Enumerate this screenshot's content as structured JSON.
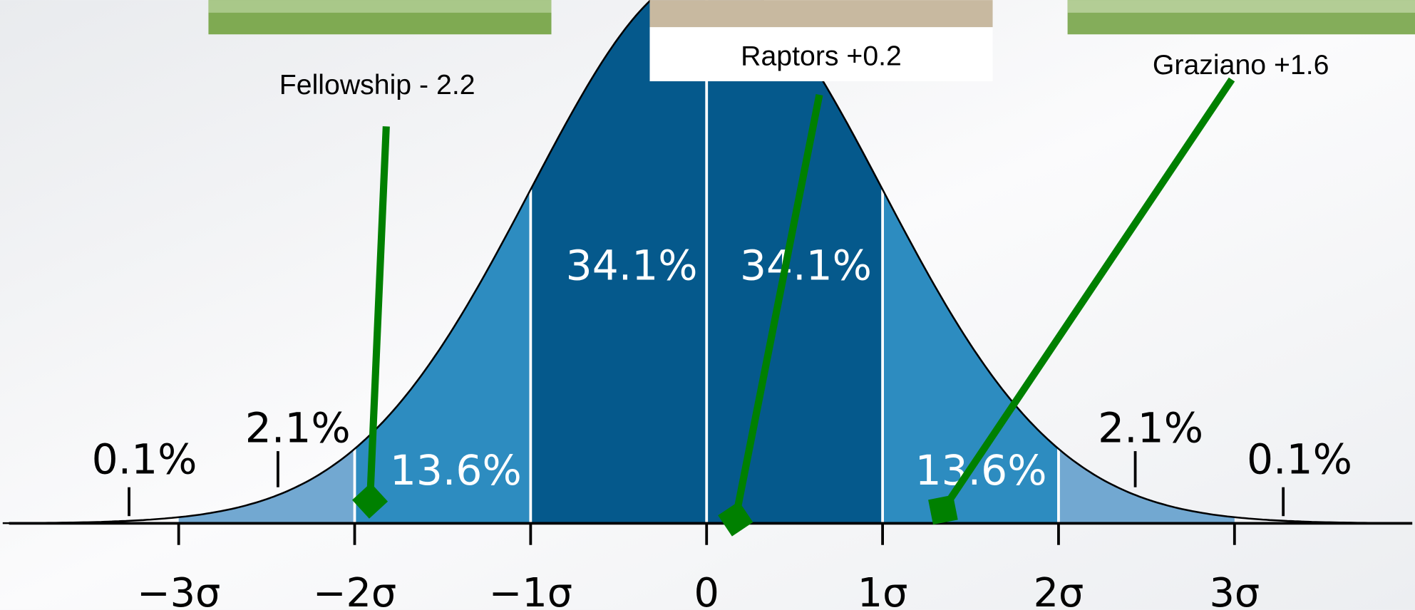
{
  "distribution": {
    "percent_labels": [
      "0.1%",
      "2.1%",
      "13.6%",
      "34.1%",
      "34.1%",
      "13.6%",
      "2.1%",
      "0.1%"
    ],
    "axis_labels": [
      "−3σ",
      "−2σ",
      "−1σ",
      "0",
      "1σ",
      "2σ",
      "3σ"
    ]
  },
  "annotations": [
    {
      "label": "Fellowship - 2.2"
    },
    {
      "label": "Raptors +0.2"
    },
    {
      "label": "Graziano +1.6"
    }
  ]
}
